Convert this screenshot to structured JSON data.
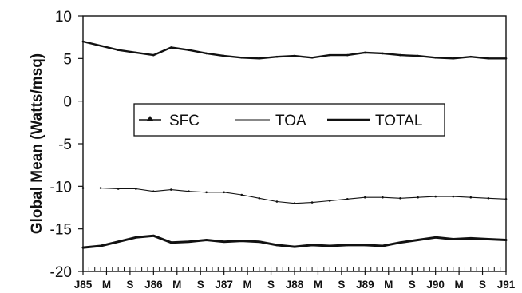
{
  "chart_data": {
    "type": "line",
    "title": "",
    "xlabel": "",
    "ylabel": "Global Mean (Watts/msq)",
    "ylim": [
      -20,
      10
    ],
    "yticks": [
      "10",
      "5",
      "0",
      "-5",
      "-10",
      "-15",
      "-20"
    ],
    "xlim": [
      "1985-01",
      "1991-01"
    ],
    "xticks": [
      {
        "label": "J85",
        "date": "1985-01"
      },
      {
        "label": "M",
        "date": "1985-05"
      },
      {
        "label": "S",
        "date": "1985-09"
      },
      {
        "label": "J86",
        "date": "1986-01"
      },
      {
        "label": "M",
        "date": "1986-05"
      },
      {
        "label": "S",
        "date": "1986-09"
      },
      {
        "label": "J87",
        "date": "1987-01"
      },
      {
        "label": "M",
        "date": "1987-05"
      },
      {
        "label": "S",
        "date": "1987-09"
      },
      {
        "label": "J88",
        "date": "1988-01"
      },
      {
        "label": "M",
        "date": "1988-05"
      },
      {
        "label": "S",
        "date": "1988-09"
      },
      {
        "label": "J89",
        "date": "1989-01"
      },
      {
        "label": "M",
        "date": "1989-05"
      },
      {
        "label": "S",
        "date": "1989-09"
      },
      {
        "label": "J90",
        "date": "1990-01"
      },
      {
        "label": "M",
        "date": "1990-05"
      },
      {
        "label": "S",
        "date": "1990-09"
      },
      {
        "label": "J91",
        "date": "1991-01"
      }
    ],
    "legend": {
      "placement": "center",
      "entries": [
        "SFC",
        "TOA",
        "TOTAL"
      ]
    },
    "grid": false,
    "series": [
      {
        "name": "SFC",
        "color": "#111111",
        "x": [
          "1985-01",
          "1985-04",
          "1985-07",
          "1985-10",
          "1986-01",
          "1986-04",
          "1986-07",
          "1986-10",
          "1987-01",
          "1987-04",
          "1987-07",
          "1987-10",
          "1988-01",
          "1988-04",
          "1988-07",
          "1988-10",
          "1989-01",
          "1989-04",
          "1989-07",
          "1989-10",
          "1990-01",
          "1990-04",
          "1990-07",
          "1990-10",
          "1991-01"
        ],
        "values": [
          7.0,
          6.5,
          6.0,
          5.7,
          5.4,
          6.3,
          6.0,
          5.6,
          5.3,
          5.1,
          5.0,
          5.2,
          5.3,
          5.1,
          5.4,
          5.4,
          5.7,
          5.6,
          5.4,
          5.3,
          5.1,
          5.0,
          5.2,
          5.0,
          5.0
        ]
      },
      {
        "name": "TOA",
        "color": "#111111",
        "x": [
          "1985-01",
          "1985-04",
          "1985-07",
          "1985-10",
          "1986-01",
          "1986-04",
          "1986-07",
          "1986-10",
          "1987-01",
          "1987-04",
          "1987-07",
          "1987-10",
          "1988-01",
          "1988-04",
          "1988-07",
          "1988-10",
          "1989-01",
          "1989-04",
          "1989-07",
          "1989-10",
          "1990-01",
          "1990-04",
          "1990-07",
          "1990-10",
          "1991-01"
        ],
        "values": [
          -10.2,
          -10.2,
          -10.3,
          -10.3,
          -10.6,
          -10.4,
          -10.6,
          -10.7,
          -10.7,
          -11.0,
          -11.4,
          -11.8,
          -12.0,
          -11.9,
          -11.7,
          -11.5,
          -11.3,
          -11.3,
          -11.4,
          -11.3,
          -11.2,
          -11.2,
          -11.3,
          -11.4,
          -11.5
        ]
      },
      {
        "name": "TOTAL",
        "color": "#111111",
        "x": [
          "1985-01",
          "1985-04",
          "1985-07",
          "1985-10",
          "1986-01",
          "1986-04",
          "1986-07",
          "1986-10",
          "1987-01",
          "1987-04",
          "1987-07",
          "1987-10",
          "1988-01",
          "1988-04",
          "1988-07",
          "1988-10",
          "1989-01",
          "1989-04",
          "1989-07",
          "1989-10",
          "1990-01",
          "1990-04",
          "1990-07",
          "1990-10",
          "1991-01"
        ],
        "values": [
          -17.2,
          -17.0,
          -16.5,
          -16.0,
          -15.8,
          -16.6,
          -16.5,
          -16.3,
          -16.5,
          -16.4,
          -16.5,
          -16.9,
          -17.1,
          -16.9,
          -17.0,
          -16.9,
          -16.9,
          -17.0,
          -16.6,
          -16.3,
          -16.0,
          -16.2,
          -16.1,
          -16.2,
          -16.3
        ]
      }
    ]
  }
}
